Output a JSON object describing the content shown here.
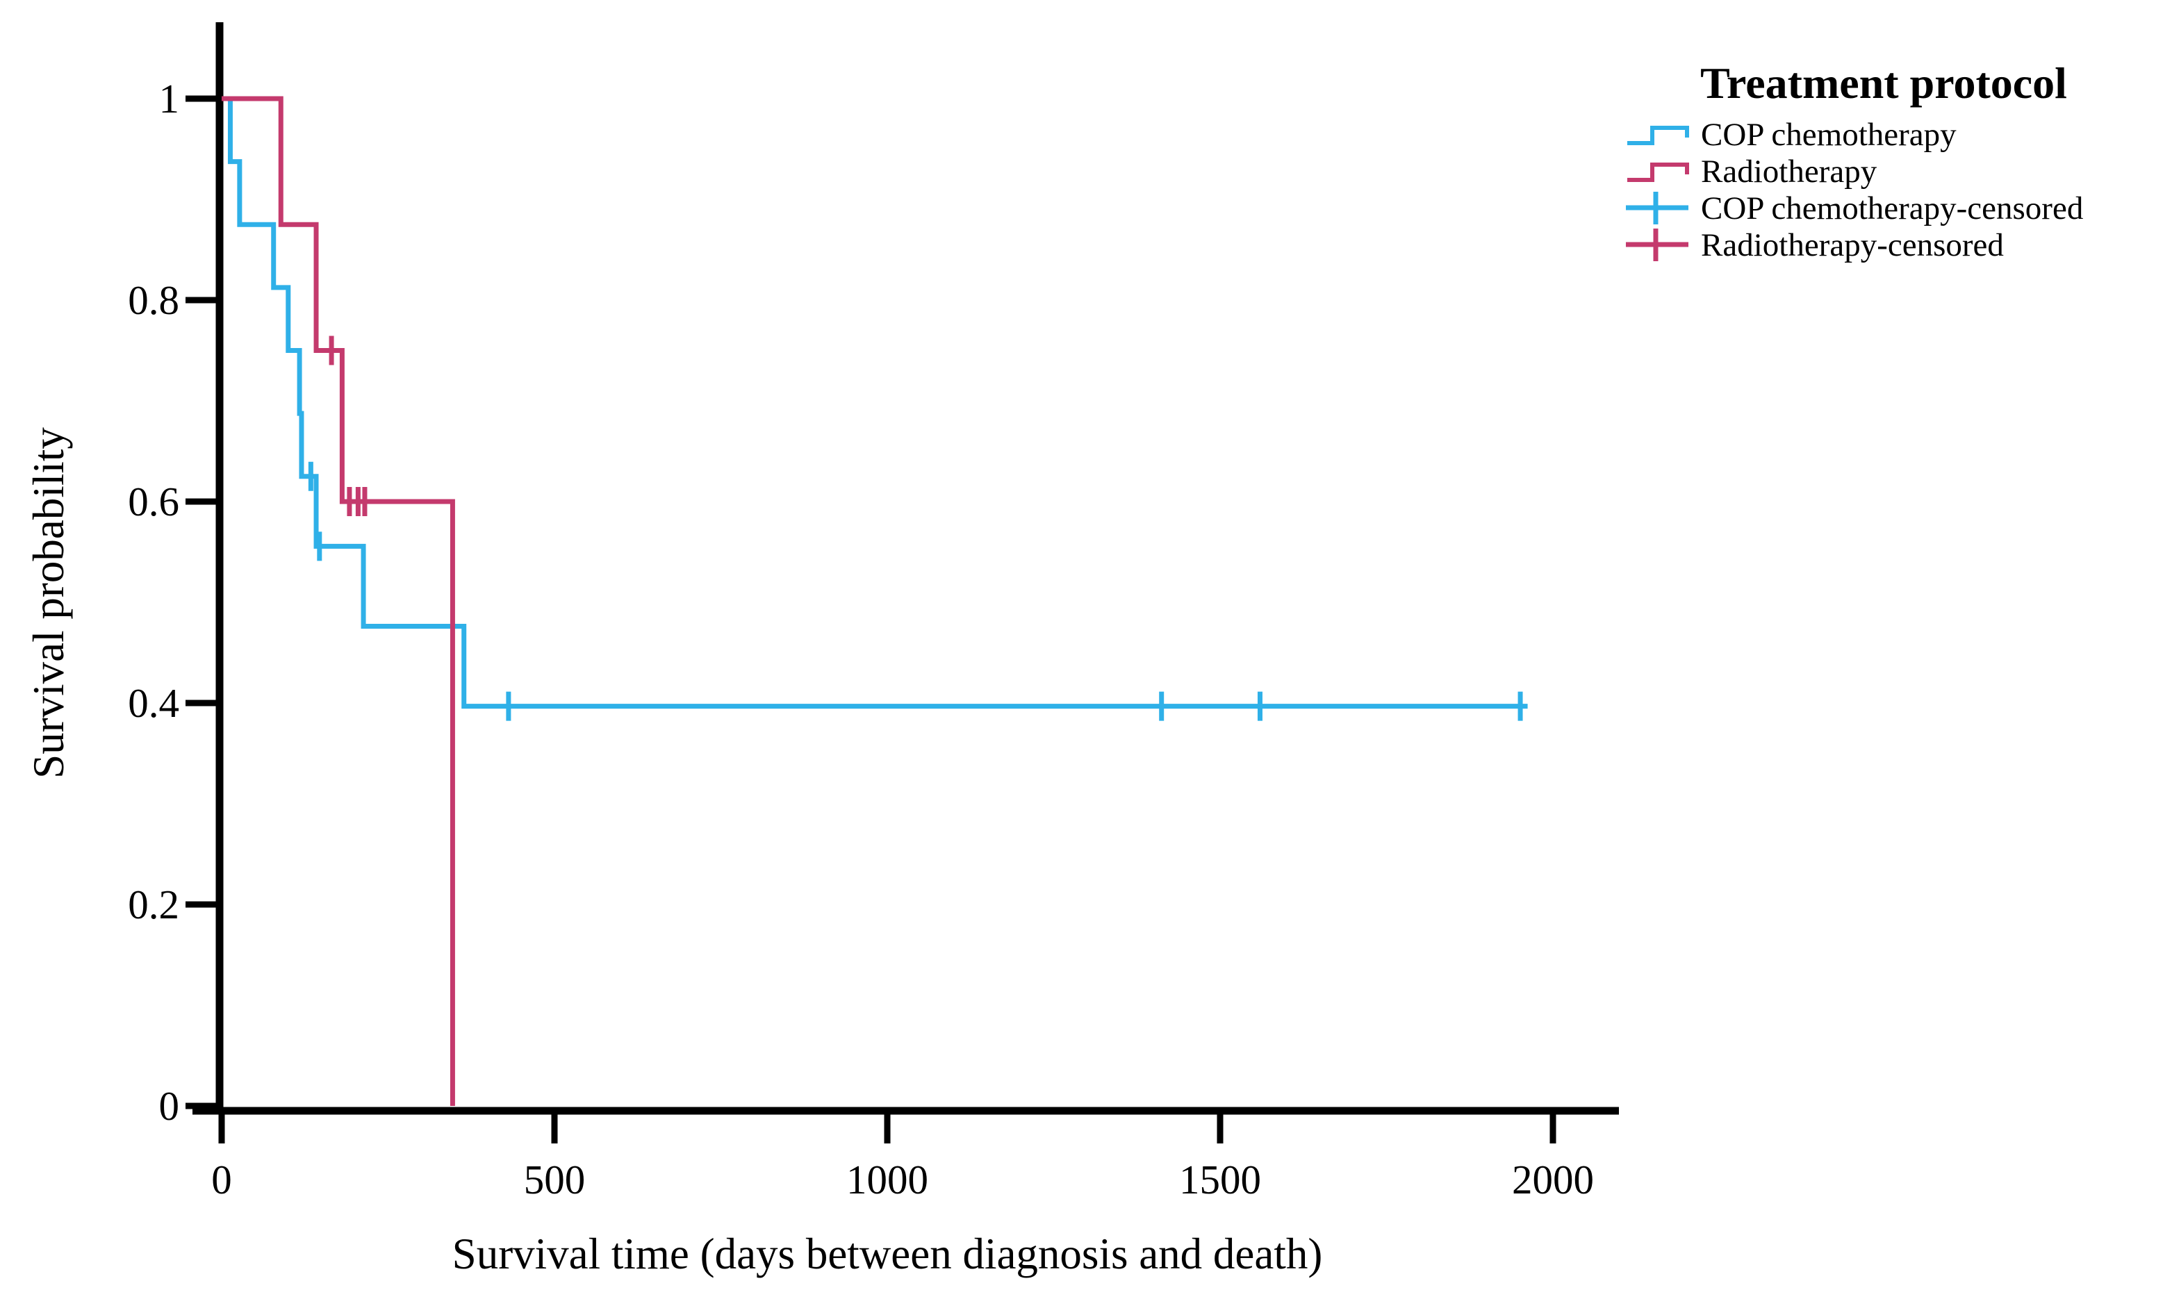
{
  "figure": {
    "y_axis": {
      "title": "Survival probability",
      "tick_labels": [
        "1",
        "0.8",
        "0.6",
        "0.4",
        "0.2",
        "0"
      ],
      "tick_values": [
        1,
        0.8,
        0.6,
        0.4,
        0.2,
        0
      ]
    },
    "x_axis": {
      "title": "Survival time (days between diagnosis and death)",
      "tick_labels": [
        "0",
        "500",
        "1000",
        "1500",
        "2000"
      ],
      "tick_values": [
        0,
        500,
        1000,
        1500,
        2000
      ]
    },
    "legend": {
      "title": "Treatment protocol",
      "items": [
        {
          "label": "COP chemotherapy",
          "marker": "step-line",
          "color": "#2FB0E8"
        },
        {
          "label": "Radiotherapy",
          "marker": "step-line",
          "color": "#C43A6D"
        },
        {
          "label": "COP chemotherapy-censored",
          "marker": "plus-cross",
          "color": "#2FB0E8"
        },
        {
          "label": "Radiotherapy-censored",
          "marker": "plus-cross",
          "color": "#C43A6D"
        }
      ]
    }
  },
  "chart_data": {
    "type": "line",
    "subtype": "kaplan-meier-step",
    "title": "",
    "xlabel": "Survival time (days between diagnosis and death)",
    "ylabel": "Survival probability",
    "xlim": [
      0,
      2060
    ],
    "ylim": [
      0,
      1
    ],
    "grid": false,
    "legend_position": "top-right",
    "axis_color": "#000000",
    "series": [
      {
        "name": "COP chemotherapy",
        "color": "#2FB0E8",
        "steps": [
          [
            0,
            1
          ],
          [
            13,
            0.9375
          ],
          [
            27,
            0.875
          ],
          [
            78,
            0.8125
          ],
          [
            100,
            0.75
          ],
          [
            117,
            0.6875
          ],
          [
            120,
            0.625
          ],
          [
            142,
            0.5556
          ],
          [
            213,
            0.4762
          ],
          [
            364,
            0.3968
          ]
        ],
        "end_day": 1962,
        "censored": [
          [
            134,
            0.625
          ],
          [
            147,
            0.5556
          ],
          [
            431,
            0.3968
          ],
          [
            1412,
            0.3968
          ],
          [
            1560,
            0.3968
          ],
          [
            1951,
            0.3968
          ]
        ]
      },
      {
        "name": "Radiotherapy",
        "color": "#C43A6D",
        "steps": [
          [
            0,
            1
          ],
          [
            89,
            0.875
          ],
          [
            142,
            0.75
          ],
          [
            181,
            0.6
          ],
          [
            347,
            0
          ]
        ],
        "end_day": 347,
        "censored": [
          [
            165,
            0.75
          ],
          [
            192,
            0.6
          ],
          [
            205,
            0.6
          ],
          [
            215,
            0.6
          ]
        ]
      }
    ]
  }
}
